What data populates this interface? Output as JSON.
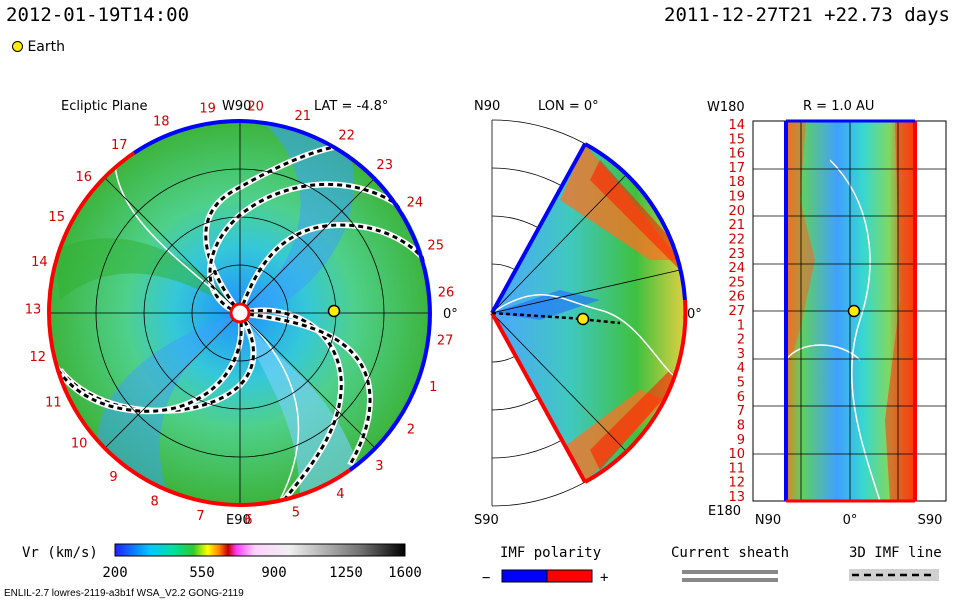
{
  "header": {
    "run_time": "2012-01-19T14:00",
    "ref_time": "2011-12-27T21 +22.73 days",
    "legend_earth": "Earth"
  },
  "panels": {
    "ecliptic": {
      "title": "Ecliptic Plane",
      "lat_label": "LAT = -4.8°",
      "top_label": "W90",
      "bottom_label": "E90",
      "right_label": "0°",
      "carrington_labels": [
        "19",
        "20",
        "21",
        "22",
        "23",
        "24",
        "25",
        "26",
        "27",
        "1",
        "2",
        "3",
        "4",
        "5",
        "6",
        "7",
        "8",
        "9",
        "10",
        "11",
        "12",
        "13",
        "14",
        "15",
        "16",
        "17",
        "18"
      ]
    },
    "meridional": {
      "top_label": "N90",
      "lon_label": "LON = 0°",
      "bottom_label": "S90",
      "right_label": "0°"
    },
    "radial": {
      "title": "R = 1.0 AU",
      "top_left": "W180",
      "bottom_left": "E180",
      "rows": [
        "14",
        "15",
        "16",
        "17",
        "18",
        "19",
        "20",
        "21",
        "22",
        "23",
        "24",
        "25",
        "26",
        "27",
        "1",
        "2",
        "3",
        "4",
        "5",
        "6",
        "7",
        "8",
        "9",
        "10",
        "11",
        "12",
        "13"
      ],
      "x_labels": [
        "N90",
        "0°",
        "S90"
      ]
    }
  },
  "colorbar": {
    "label": "Vr (km/s)",
    "ticks": [
      "200",
      "550",
      "900",
      "1250",
      "1600"
    ]
  },
  "legend": {
    "imf_title": "IMF polarity",
    "imf_minus": "−",
    "imf_plus": "+",
    "sheath_title": "Current sheath",
    "imf3d_title": "3D IMF line"
  },
  "footer": {
    "model": "ENLIL-2.7 lowres-2119-a3b1f WSA_V2.2 GONG-2119"
  },
  "colors": {
    "neg_polarity": "#0000ff",
    "pos_polarity": "#ff0000",
    "earth": "#ffee00"
  }
}
